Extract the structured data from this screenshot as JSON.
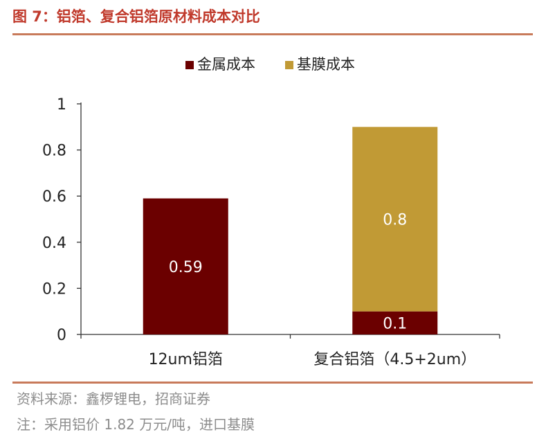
{
  "title": "图 7：铝箔、复合铝箔原材料成本对比",
  "source_text": "资料来源：鑫椤锂电，招商证券",
  "note_text": "注：采用铝价 1.82 万元/吨，进口基膜",
  "colors": {
    "metal": "#6b0000",
    "film": "#c19a35",
    "rule": "#c87a5a",
    "title": "#c0392b"
  },
  "chart_data": {
    "type": "bar",
    "stacked": true,
    "categories": [
      "12um铝箔",
      "复合铝箔（4.5+2um）"
    ],
    "series": [
      {
        "name": "金属成本",
        "values": [
          0.59,
          0.1
        ],
        "labels": [
          "0.59",
          "0.1"
        ],
        "color": "#6b0000"
      },
      {
        "name": "基膜成本",
        "values": [
          0,
          0.8
        ],
        "labels": [
          "",
          "0.8"
        ],
        "color": "#c19a35"
      }
    ],
    "ylim": [
      0,
      1
    ],
    "yticks": [
      0,
      0.2,
      0.4,
      0.6,
      0.8,
      1
    ],
    "ytick_labels": [
      "0",
      "0.2",
      "0.4",
      "0.6",
      "0.8",
      "1"
    ],
    "legend_position": "top-center",
    "grid": false
  }
}
